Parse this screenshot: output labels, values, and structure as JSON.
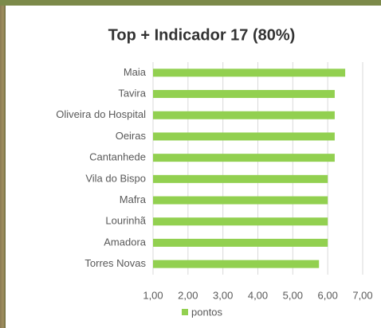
{
  "chart_data": {
    "type": "hbar",
    "title": "Top + Indicador 17 (80%)",
    "categories": [
      "Maia",
      "Tavira",
      "Oliveira do Hospital",
      "Oeiras",
      "Cantanhede",
      "Vila do Bispo",
      "Mafra",
      "Lourinhã",
      "Amadora",
      "Torres Novas"
    ],
    "series": [
      {
        "name": "pontos",
        "color": "#92d050",
        "values": [
          6.5,
          6.2,
          6.2,
          6.2,
          6.2,
          6.0,
          6.0,
          6.0,
          6.0,
          5.75
        ]
      }
    ],
    "xlim": [
      1,
      7
    ],
    "xticks": [
      {
        "value": 1,
        "label": "1,00"
      },
      {
        "value": 2,
        "label": "2,00"
      },
      {
        "value": 3,
        "label": "3,00"
      },
      {
        "value": 4,
        "label": "4,00"
      },
      {
        "value": 5,
        "label": "5,00"
      },
      {
        "value": 6,
        "label": "6,00"
      },
      {
        "value": 7,
        "label": "7,00"
      }
    ],
    "grid": true,
    "legend": "bottom"
  }
}
